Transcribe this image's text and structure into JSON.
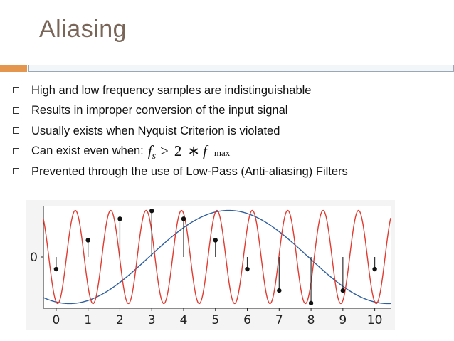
{
  "slide": {
    "title": "Aliasing",
    "bullets": [
      "High and low frequency samples are indistinguishable",
      "Results in improper conversion of the input signal",
      "Usually exists when Nyquist Criterion is violated",
      "Can exist even when:",
      "Prevented through the use of Low-Pass (Anti-aliasing) Filters"
    ],
    "formula": {
      "f": "f",
      "s": "s",
      "gt": ">",
      "two": "2",
      "star": "∗",
      "f2": "f",
      "max": "max"
    }
  },
  "colors": {
    "title": "#7a6659",
    "accent": "#e4954e",
    "high_freq": "#e03c31",
    "low_freq": "#2f5f9e"
  },
  "chart_data": {
    "type": "line",
    "x_ticks": [
      "0",
      "1",
      "2",
      "3",
      "4",
      "5",
      "6",
      "7",
      "8",
      "9",
      "10"
    ],
    "y_ticks": [
      "0"
    ],
    "xlim": [
      -0.4,
      10.5
    ],
    "ylim": [
      -1.1,
      1.1
    ],
    "series": [
      {
        "kind": "high-frequency sinusoid",
        "color": "#e03c31",
        "cycles_per_sample": 0.9,
        "phase_deg": 255
      },
      {
        "kind": "low-frequency alias",
        "color": "#2f5f9e",
        "cycles_per_sample": 0.1,
        "phase_deg": 255
      }
    ],
    "samples": {
      "x": [
        0,
        1,
        2,
        3,
        4,
        5,
        6,
        7,
        8,
        9,
        10
      ],
      "y": [
        -0.26,
        0.36,
        0.82,
        0.99,
        0.82,
        0.36,
        -0.26,
        -0.72,
        -0.99,
        -0.72,
        -0.26
      ]
    },
    "grid": false
  }
}
